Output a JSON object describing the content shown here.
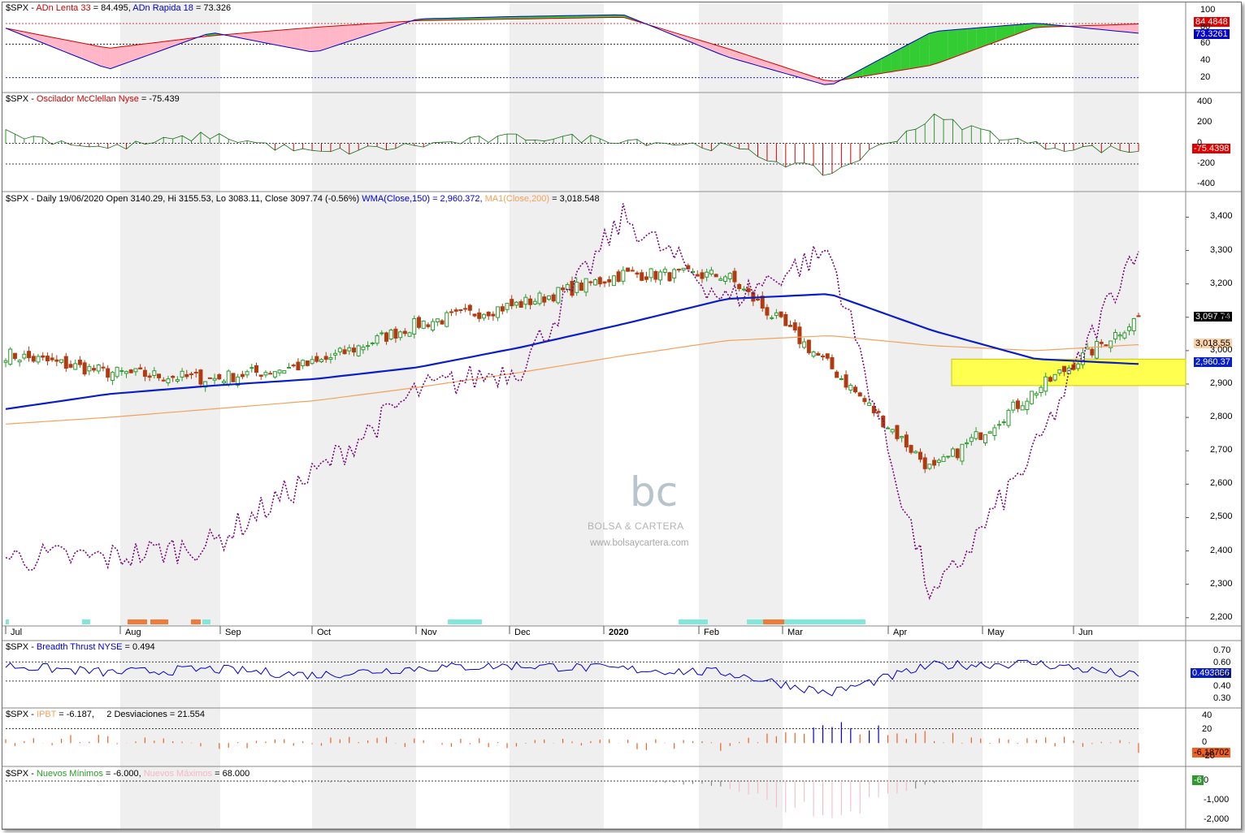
{
  "colors": {
    "bull": "#2c9a2c",
    "bear": "#b23a10",
    "wma": "#0a1ec8",
    "ma200": "#f2a25a",
    "ma_red": "#e01010",
    "purple": "#7a0a7a",
    "highlight": "#ffff50",
    "shade": "#efefef",
    "macd_green": "#2c9a2c",
    "macd_red": "#d40000",
    "ipbt_orange": "#f06020",
    "ipbt_blue": "#0000cc",
    "nm_pink": "#f6b6c6"
  },
  "panels": {
    "adn": {
      "symbol": "$SPX",
      "sep": " - ",
      "name1": "ADn Lenta 33",
      "val1": " = 84.495, ",
      "name2": "ADn Rapida 18",
      "val2": " = 73.326",
      "tag1": "84.4848",
      "tag2": "73.3261",
      "ticks": [
        "100",
        "80",
        "60",
        "40",
        "20"
      ]
    },
    "mcc": {
      "symbol": "$SPX",
      "sep": " - ",
      "name": "Oscilador McClellan Nyse",
      "val": " = -75.439",
      "tag": "-75.4398",
      "ticks": [
        "400",
        "200",
        "0",
        "-200",
        "-400"
      ]
    },
    "price": {
      "symbol": "$SPX",
      "sep": " - ",
      "info": "Daily 19/06/2020 Open 3140.29, Hi 3155.53, Lo 3083.11, Close 3097.74 (-0.56%) ",
      "wma": "WMA(Close,150) = 2,960.372, ",
      "ma": "MA1(Close,200)",
      "ma_val": " = 3,018.548",
      "tag_close": "3,097.74",
      "tag_ma200": "3,018.55",
      "tag_wma": "2,960.37",
      "ticks": [
        "3,400",
        "3,300",
        "3,200",
        "3,100",
        "3,000",
        "2,900",
        "2,800",
        "2,700",
        "2,600",
        "2,500",
        "2,400",
        "2,300",
        "2,200"
      ]
    },
    "breadth": {
      "symbol": "$SPX",
      "sep": " - ",
      "name": "Breadth Thrust NYSE",
      "val": " = 0.494",
      "tag": "0.493886",
      "ticks": [
        "0.70",
        "0.60",
        "0.50",
        "0.40",
        "0.30"
      ]
    },
    "ipbt": {
      "symbol": "$SPX",
      "sep": " - ",
      "name": "IPBT",
      "val": " = -6.187,",
      "dev": "2 Desviaciones = 21.554",
      "tag": "-6.18702",
      "ticks": [
        "40",
        "20",
        "0",
        "-20"
      ]
    },
    "nm": {
      "symbol": "$SPX",
      "sep": " - ",
      "name1": "Nuevos Mínimos",
      "val1": " = -6.000, ",
      "name2": "Nuevos Máximos",
      "val2": " = 68.000",
      "tag": "-6",
      "ticks": [
        "0",
        "-1,000",
        "-2,000"
      ]
    }
  },
  "months": [
    "Jul",
    "Aug",
    "Sep",
    "Oct",
    "Nov",
    "Dec",
    "2020",
    "Feb",
    "Mar",
    "Apr",
    "May",
    "Jun"
  ],
  "watermark": {
    "logo": "bc",
    "name": "BOLSA & CARTERA",
    "url": "www.bolsaycartera.com"
  },
  "chart_data": {
    "type": "line",
    "title": "$SPX - Daily 19/06/2020",
    "ohlc_last": {
      "date": "19/06/2020",
      "open": 3140.29,
      "high": 3155.53,
      "low": 3083.11,
      "close": 3097.74,
      "change_pct": -0.56
    },
    "x": [
      "Jul",
      "Aug",
      "Sep",
      "Oct",
      "Nov",
      "Dec",
      "2020",
      "Feb",
      "Mar",
      "Apr",
      "May",
      "Jun"
    ],
    "series": [
      {
        "name": "$SPX Close",
        "values": [
          2990,
          2935,
          2915,
          2960,
          3080,
          3140,
          3230,
          3225,
          2954,
          2640,
          2880,
          3100
        ]
      },
      {
        "name": "WMA(Close,150)",
        "values": [
          2825,
          2870,
          2895,
          2915,
          2950,
          3010,
          3080,
          3155,
          3170,
          3060,
          2975,
          2960
        ]
      },
      {
        "name": "MA1(Close,200)",
        "values": [
          2780,
          2800,
          2825,
          2850,
          2890,
          2935,
          2985,
          3030,
          3045,
          3015,
          3000,
          3018
        ]
      },
      {
        "name": "ADn Lenta 33",
        "values": [
          79,
          55,
          70,
          80,
          88,
          90,
          92,
          55,
          15,
          35,
          80,
          84
        ]
      },
      {
        "name": "ADn Rapida 18",
        "values": [
          79,
          30,
          74,
          50,
          90,
          93,
          95,
          45,
          10,
          75,
          85,
          73
        ]
      },
      {
        "name": "Oscilador McClellan Nyse",
        "values": [
          100,
          -50,
          80,
          -100,
          -20,
          60,
          40,
          -40,
          -300,
          250,
          -20,
          -75
        ]
      },
      {
        "name": "Breadth Thrust NYSE",
        "values": [
          0.58,
          0.52,
          0.55,
          0.5,
          0.56,
          0.58,
          0.55,
          0.52,
          0.35,
          0.58,
          0.6,
          0.49
        ]
      },
      {
        "name": "IPBT",
        "values": [
          0,
          5,
          -3,
          2,
          1,
          0,
          -2,
          -5,
          25,
          10,
          3,
          -6
        ]
      },
      {
        "name": "Nuevos Mínimos",
        "values": [
          0,
          -50,
          -20,
          -100,
          0,
          0,
          0,
          -300,
          -2200,
          -100,
          0,
          -6
        ]
      }
    ],
    "levels": {
      "adn": [
        84.5,
        60,
        20
      ],
      "mcc": [
        0,
        -200
      ],
      "breadth": [
        0.61,
        0.45
      ],
      "ipbt": [
        21.5
      ]
    },
    "highlight_zone": [
      2910,
      2960
    ],
    "price_ylim": [
      2180,
      3440
    ]
  }
}
